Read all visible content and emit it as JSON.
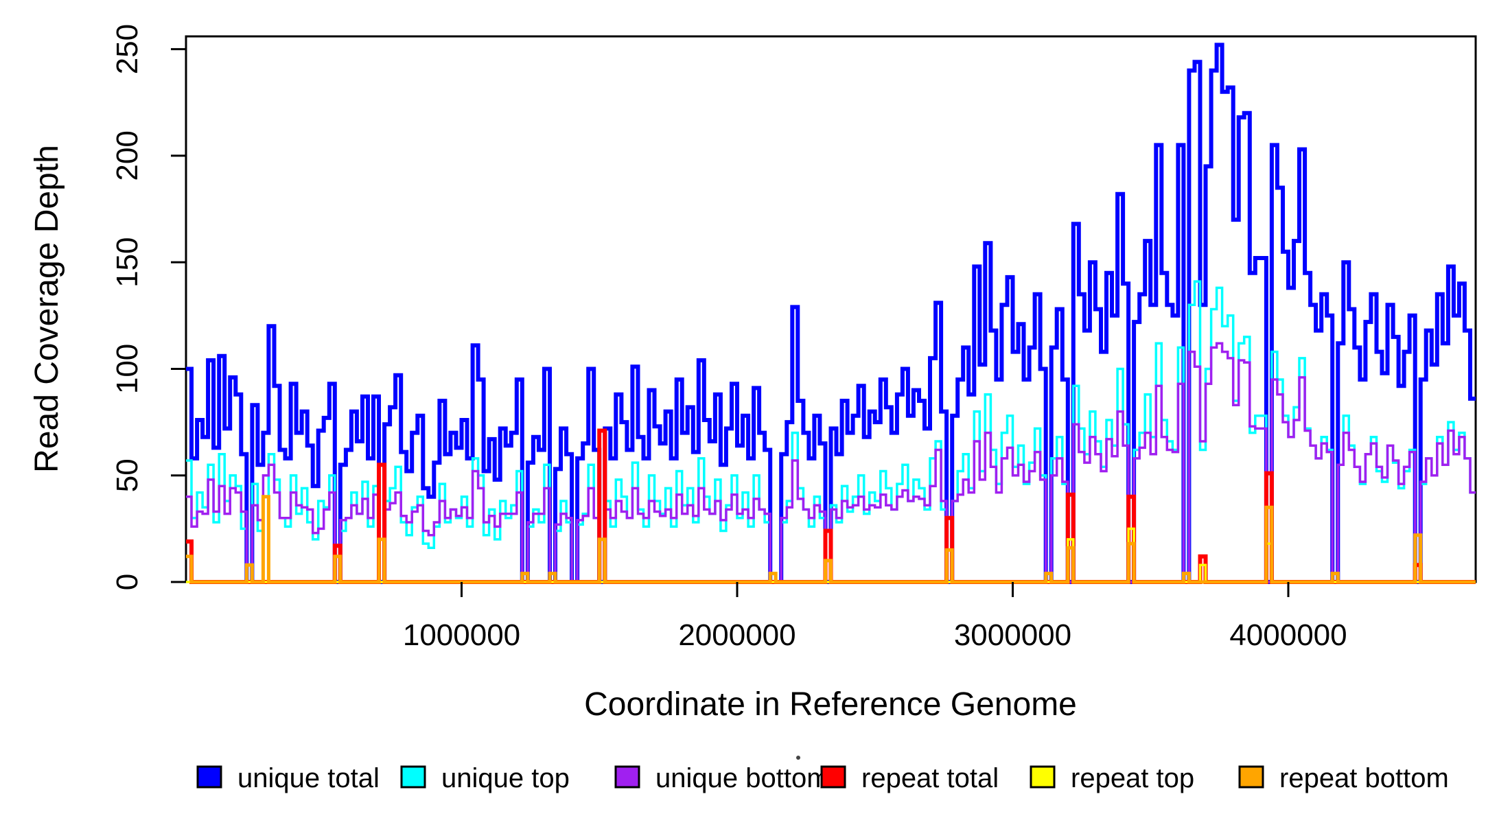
{
  "figure": {
    "x_axis_title": "Coordinate in Reference Genome",
    "y_axis_title": "Read Coverage Depth"
  },
  "legend": {
    "items": [
      {
        "label": "unique total",
        "color": "#0000FF"
      },
      {
        "label": "unique top",
        "color": "#00FFFF"
      },
      {
        "label": "unique bottom",
        "color": "#A020F0"
      },
      {
        "label": "repeat total",
        "color": "#FF0000"
      },
      {
        "label": "repeat top",
        "color": "#FFFF00"
      },
      {
        "label": "repeat bottom",
        "color": "#FFA500"
      }
    ]
  },
  "chart_data": {
    "type": "line",
    "subtype": "step-coverage",
    "title": "",
    "xlabel": "Coordinate in Reference Genome",
    "ylabel": "Read Coverage Depth",
    "xlim": [
      0,
      4680000
    ],
    "ylim": [
      0,
      256
    ],
    "bin_size": 20000,
    "n_bins": 234,
    "x_ticks": [
      1000000,
      2000000,
      3000000,
      4000000
    ],
    "x_tick_labels": [
      "1000000",
      "2000000",
      "3000000",
      "4000000"
    ],
    "y_ticks": [
      0,
      50,
      100,
      150,
      200,
      250
    ],
    "y_tick_labels": [
      "0",
      "50",
      "100",
      "150",
      "200",
      "250"
    ],
    "grid": false,
    "legend_position": "bottom",
    "series": [
      {
        "name": "unique total",
        "color": "#0000FF",
        "line_width": 6,
        "values": [
          100,
          58,
          76,
          68,
          104,
          63,
          106,
          72,
          96,
          88,
          60,
          0,
          83,
          55,
          70,
          120,
          92,
          62,
          58,
          93,
          70,
          80,
          64,
          45,
          71,
          77,
          93,
          0,
          55,
          62,
          80,
          66,
          87,
          58,
          87,
          0,
          74,
          82,
          97,
          61,
          52,
          70,
          78,
          44,
          40,
          56,
          85,
          60,
          70,
          63,
          76,
          58,
          111,
          95,
          52,
          67,
          48,
          72,
          64,
          70,
          95,
          0,
          56,
          68,
          62,
          100,
          0,
          53,
          72,
          60,
          0,
          58,
          65,
          100,
          62,
          0,
          72,
          58,
          88,
          75,
          62,
          101,
          68,
          58,
          90,
          73,
          65,
          80,
          58,
          95,
          70,
          82,
          61,
          104,
          76,
          66,
          88,
          55,
          72,
          93,
          64,
          78,
          58,
          91,
          70,
          62,
          0,
          0,
          60,
          75,
          129,
          85,
          70,
          58,
          78,
          65,
          0,
          72,
          60,
          85,
          70,
          78,
          92,
          68,
          80,
          75,
          95,
          82,
          70,
          88,
          100,
          78,
          90,
          85,
          72,
          105,
          131,
          80,
          0,
          78,
          95,
          110,
          88,
          148,
          102,
          159,
          118,
          95,
          130,
          143,
          108,
          121,
          95,
          110,
          135,
          100,
          0,
          110,
          128,
          95,
          0,
          168,
          135,
          118,
          150,
          128,
          108,
          145,
          125,
          182,
          140,
          0,
          122,
          135,
          160,
          130,
          205,
          145,
          130,
          125,
          205,
          0,
          240,
          244,
          130,
          195,
          240,
          252,
          230,
          232,
          170,
          218,
          220,
          145,
          152,
          152,
          0,
          205,
          185,
          155,
          138,
          160,
          203,
          145,
          130,
          118,
          135,
          125,
          0,
          112,
          150,
          128,
          110,
          95,
          122,
          135,
          108,
          98,
          130,
          115,
          92,
          108,
          125,
          0,
          95,
          118,
          102,
          135,
          112,
          148,
          125,
          140,
          118,
          86
        ]
      },
      {
        "name": "unique top",
        "color": "#00FFFF",
        "line_width": 3.5,
        "values": [
          57,
          30,
          42,
          35,
          55,
          28,
          60,
          38,
          50,
          45,
          25,
          0,
          46,
          24,
          0,
          60,
          48,
          30,
          26,
          50,
          32,
          44,
          28,
          20,
          38,
          35,
          50,
          0,
          24,
          30,
          42,
          32,
          47,
          26,
          45,
          0,
          38,
          44,
          54,
          28,
          22,
          35,
          40,
          18,
          16,
          26,
          46,
          28,
          34,
          30,
          40,
          26,
          58,
          50,
          22,
          34,
          20,
          38,
          30,
          36,
          52,
          0,
          26,
          34,
          28,
          55,
          0,
          24,
          38,
          28,
          0,
          27,
          32,
          55,
          30,
          0,
          38,
          26,
          48,
          40,
          30,
          56,
          34,
          26,
          50,
          38,
          32,
          44,
          26,
          52,
          36,
          44,
          28,
          58,
          40,
          32,
          48,
          24,
          36,
          50,
          30,
          42,
          26,
          50,
          34,
          28,
          0,
          0,
          28,
          38,
          70,
          44,
          34,
          26,
          40,
          30,
          0,
          36,
          28,
          45,
          33,
          40,
          50,
          32,
          42,
          38,
          52,
          44,
          34,
          46,
          55,
          38,
          48,
          44,
          34,
          58,
          66,
          34,
          0,
          38,
          52,
          60,
          44,
          80,
          52,
          88,
          62,
          46,
          70,
          78,
          54,
          64,
          46,
          56,
          72,
          50,
          0,
          58,
          68,
          46,
          0,
          92,
          72,
          60,
          80,
          66,
          54,
          76,
          64,
          100,
          74,
          0,
          62,
          70,
          88,
          68,
          112,
          76,
          66,
          62,
          110,
          0,
          130,
          141,
          62,
          100,
          128,
          138,
          120,
          125,
          85,
          112,
          115,
          70,
          78,
          78,
          0,
          108,
          95,
          78,
          68,
          82,
          105,
          72,
          64,
          58,
          68,
          62,
          0,
          55,
          78,
          64,
          54,
          46,
          60,
          68,
          52,
          47,
          64,
          56,
          44,
          52,
          62,
          0,
          46,
          58,
          50,
          68,
          55,
          75,
          62,
          70,
          58,
          42
        ]
      },
      {
        "name": "unique bottom",
        "color": "#A020F0",
        "line_width": 3.5,
        "values": [
          40,
          26,
          33,
          32,
          48,
          33,
          45,
          32,
          44,
          42,
          33,
          0,
          36,
          29,
          50,
          55,
          42,
          30,
          30,
          42,
          36,
          35,
          34,
          23,
          25,
          34,
          42,
          0,
          29,
          30,
          36,
          32,
          39,
          30,
          41,
          0,
          34,
          37,
          42,
          31,
          28,
          33,
          36,
          24,
          22,
          28,
          38,
          30,
          34,
          31,
          35,
          30,
          52,
          44,
          28,
          31,
          26,
          32,
          32,
          32,
          42,
          0,
          28,
          32,
          32,
          44,
          0,
          27,
          32,
          30,
          0,
          29,
          31,
          44,
          30,
          0,
          34,
          30,
          38,
          33,
          30,
          44,
          32,
          30,
          38,
          33,
          31,
          34,
          30,
          41,
          32,
          36,
          31,
          44,
          34,
          32,
          38,
          29,
          34,
          41,
          32,
          34,
          30,
          39,
          34,
          32,
          0,
          0,
          30,
          35,
          57,
          39,
          34,
          30,
          36,
          33,
          0,
          34,
          30,
          38,
          35,
          36,
          40,
          34,
          36,
          35,
          41,
          36,
          34,
          40,
          43,
          38,
          40,
          39,
          36,
          45,
          62,
          38,
          0,
          38,
          41,
          48,
          42,
          66,
          48,
          70,
          54,
          42,
          58,
          63,
          50,
          55,
          47,
          52,
          61,
          48,
          0,
          50,
          58,
          47,
          0,
          74,
          61,
          56,
          68,
          60,
          52,
          67,
          59,
          80,
          64,
          0,
          58,
          63,
          70,
          60,
          92,
          68,
          62,
          61,
          93,
          0,
          108,
          101,
          66,
          93,
          110,
          112,
          108,
          105,
          83,
          104,
          103,
          73,
          72,
          72,
          0,
          95,
          88,
          75,
          68,
          76,
          96,
          71,
          64,
          58,
          65,
          61,
          0,
          55,
          70,
          62,
          54,
          47,
          60,
          65,
          54,
          49,
          64,
          57,
          46,
          54,
          61,
          0,
          47,
          58,
          50,
          65,
          55,
          71,
          60,
          68,
          58,
          42
        ]
      },
      {
        "name": "repeat total",
        "color": "#FF0000",
        "line_width": 6,
        "baseline": 0,
        "spikes": {
          "0": 19,
          "27": 17,
          "35": 55,
          "75": 71,
          "116": 24,
          "138": 30,
          "160": 41,
          "171": 40,
          "184": 12,
          "196": 51,
          "223": 8
        }
      },
      {
        "name": "repeat top",
        "color": "#FFFF00",
        "line_width": 3.5,
        "baseline": 0,
        "spikes": {
          "160": 20,
          "171": 25,
          "184": 8,
          "196": 18
        }
      },
      {
        "name": "repeat bottom",
        "color": "#FFA500",
        "line_width": 5,
        "baseline": 0,
        "spikes": {
          "0": 12,
          "11": 8,
          "14": 40,
          "27": 12,
          "35": 20,
          "61": 4,
          "66": 4,
          "75": 20,
          "106": 4,
          "116": 10,
          "138": 15,
          "156": 4,
          "160": 16,
          "171": 18,
          "181": 4,
          "196": 35,
          "208": 4,
          "223": 22
        }
      }
    ]
  }
}
